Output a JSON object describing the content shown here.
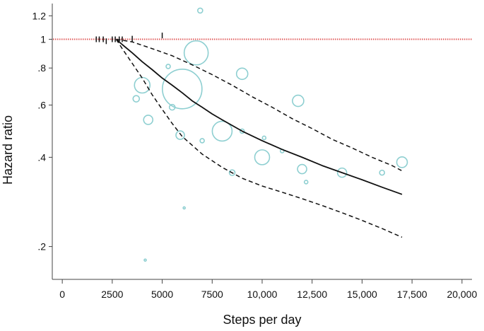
{
  "chart_data": {
    "type": "scatter",
    "xlabel": "Steps per day",
    "ylabel": "Hazard ratio",
    "xlim": [
      -500,
      20500
    ],
    "ylim": [
      0.155,
      1.32
    ],
    "y_scale": "log",
    "grid": false,
    "legend": "none",
    "x_ticks": [
      {
        "value": 0,
        "label": "0"
      },
      {
        "value": 2500,
        "label": "2500"
      },
      {
        "value": 5000,
        "label": "5000"
      },
      {
        "value": 7500,
        "label": "7500"
      },
      {
        "value": 10000,
        "label": "10,000"
      },
      {
        "value": 12500,
        "label": "12,500"
      },
      {
        "value": 15000,
        "label": "15,000"
      },
      {
        "value": 17500,
        "label": "17,500"
      },
      {
        "value": 20000,
        "label": "20,000"
      }
    ],
    "y_ticks": [
      {
        "value": 0.2,
        "label": ".2"
      },
      {
        "value": 0.4,
        "label": ".4"
      },
      {
        "value": 0.6,
        "label": ".6"
      },
      {
        "value": 0.8,
        "label": ".8"
      },
      {
        "value": 1.0,
        "label": "1"
      },
      {
        "value": 1.2,
        "label": "1.2"
      }
    ],
    "reference_line": {
      "y": 1.0,
      "color": "#e05a5a",
      "style": "dotted"
    },
    "reference_markers": [
      {
        "x": 1700,
        "y": 1.0
      },
      {
        "x": 1850,
        "y": 1.0
      },
      {
        "x": 2050,
        "y": 1.0
      },
      {
        "x": 2200,
        "y": 0.985
      },
      {
        "x": 2500,
        "y": 1.0
      },
      {
        "x": 2650,
        "y": 1.0
      },
      {
        "x": 2850,
        "y": 1.0
      },
      {
        "x": 3000,
        "y": 1.0
      },
      {
        "x": 3500,
        "y": 1.005
      },
      {
        "x": 5000,
        "y": 1.03
      }
    ],
    "series": [
      {
        "role": "estimate",
        "color": "#111111",
        "style": "solid",
        "x": [
          2700,
          3000,
          3500,
          4000,
          4500,
          5000,
          5500,
          6000,
          6500,
          7000,
          7500,
          8000,
          9000,
          10000,
          11000,
          12000,
          13000,
          14000,
          15000,
          16000,
          17000
        ],
        "y": [
          1.0,
          0.96,
          0.9,
          0.84,
          0.79,
          0.74,
          0.7,
          0.66,
          0.62,
          0.59,
          0.56,
          0.535,
          0.49,
          0.455,
          0.425,
          0.4,
          0.375,
          0.355,
          0.336,
          0.317,
          0.3
        ]
      },
      {
        "role": "upper-ci",
        "color": "#111111",
        "style": "dashed",
        "x": [
          2700,
          3500,
          4500,
          5500,
          6500,
          7500,
          8500,
          9500,
          10500,
          11500,
          12500,
          13500,
          14500,
          15500,
          16500,
          17000
        ],
        "y": [
          1.0,
          0.98,
          0.93,
          0.88,
          0.82,
          0.76,
          0.7,
          0.64,
          0.59,
          0.54,
          0.5,
          0.46,
          0.43,
          0.4,
          0.375,
          0.36
        ]
      },
      {
        "role": "lower-ci",
        "color": "#111111",
        "style": "dashed",
        "x": [
          2700,
          3000,
          3500,
          4000,
          4500,
          5000,
          5500,
          6000,
          7000,
          8000,
          9000,
          10000,
          11000,
          12000,
          13000,
          14000,
          15000,
          16000,
          17000
        ],
        "y": [
          1.0,
          0.93,
          0.83,
          0.74,
          0.65,
          0.58,
          0.52,
          0.47,
          0.41,
          0.37,
          0.34,
          0.32,
          0.305,
          0.29,
          0.275,
          0.26,
          0.245,
          0.23,
          0.215
        ]
      }
    ],
    "studies": [
      {
        "x": 6900,
        "y": 1.25,
        "size": 3.5
      },
      {
        "x": 6700,
        "y": 0.9,
        "size": 17
      },
      {
        "x": 5300,
        "y": 0.81,
        "size": 3
      },
      {
        "x": 4000,
        "y": 0.7,
        "size": 11
      },
      {
        "x": 3700,
        "y": 0.63,
        "size": 4.5
      },
      {
        "x": 6000,
        "y": 0.68,
        "size": 28
      },
      {
        "x": 5500,
        "y": 0.59,
        "size": 4
      },
      {
        "x": 4300,
        "y": 0.535,
        "size": 6.5
      },
      {
        "x": 9000,
        "y": 0.765,
        "size": 8
      },
      {
        "x": 5900,
        "y": 0.475,
        "size": 6
      },
      {
        "x": 7000,
        "y": 0.455,
        "size": 3
      },
      {
        "x": 8000,
        "y": 0.49,
        "size": 14
      },
      {
        "x": 9000,
        "y": 0.49,
        "size": 3
      },
      {
        "x": 10000,
        "y": 0.4,
        "size": 10.5
      },
      {
        "x": 10100,
        "y": 0.465,
        "size": 2.5
      },
      {
        "x": 11000,
        "y": 0.42,
        "size": 2.5
      },
      {
        "x": 11800,
        "y": 0.62,
        "size": 8
      },
      {
        "x": 12000,
        "y": 0.365,
        "size": 6.5
      },
      {
        "x": 12200,
        "y": 0.33,
        "size": 2.5
      },
      {
        "x": 8500,
        "y": 0.355,
        "size": 4
      },
      {
        "x": 14000,
        "y": 0.355,
        "size": 6.5
      },
      {
        "x": 16000,
        "y": 0.355,
        "size": 3.5
      },
      {
        "x": 17000,
        "y": 0.385,
        "size": 7.5
      },
      {
        "x": 6100,
        "y": 0.27,
        "size": 1.5
      },
      {
        "x": 4150,
        "y": 0.18,
        "size": 1.5
      }
    ],
    "colors": {
      "estimate": "#111111",
      "ci": "#111111",
      "studies": "#8ecfd1",
      "reference": "#e05a5a",
      "axes": "#444444"
    }
  }
}
